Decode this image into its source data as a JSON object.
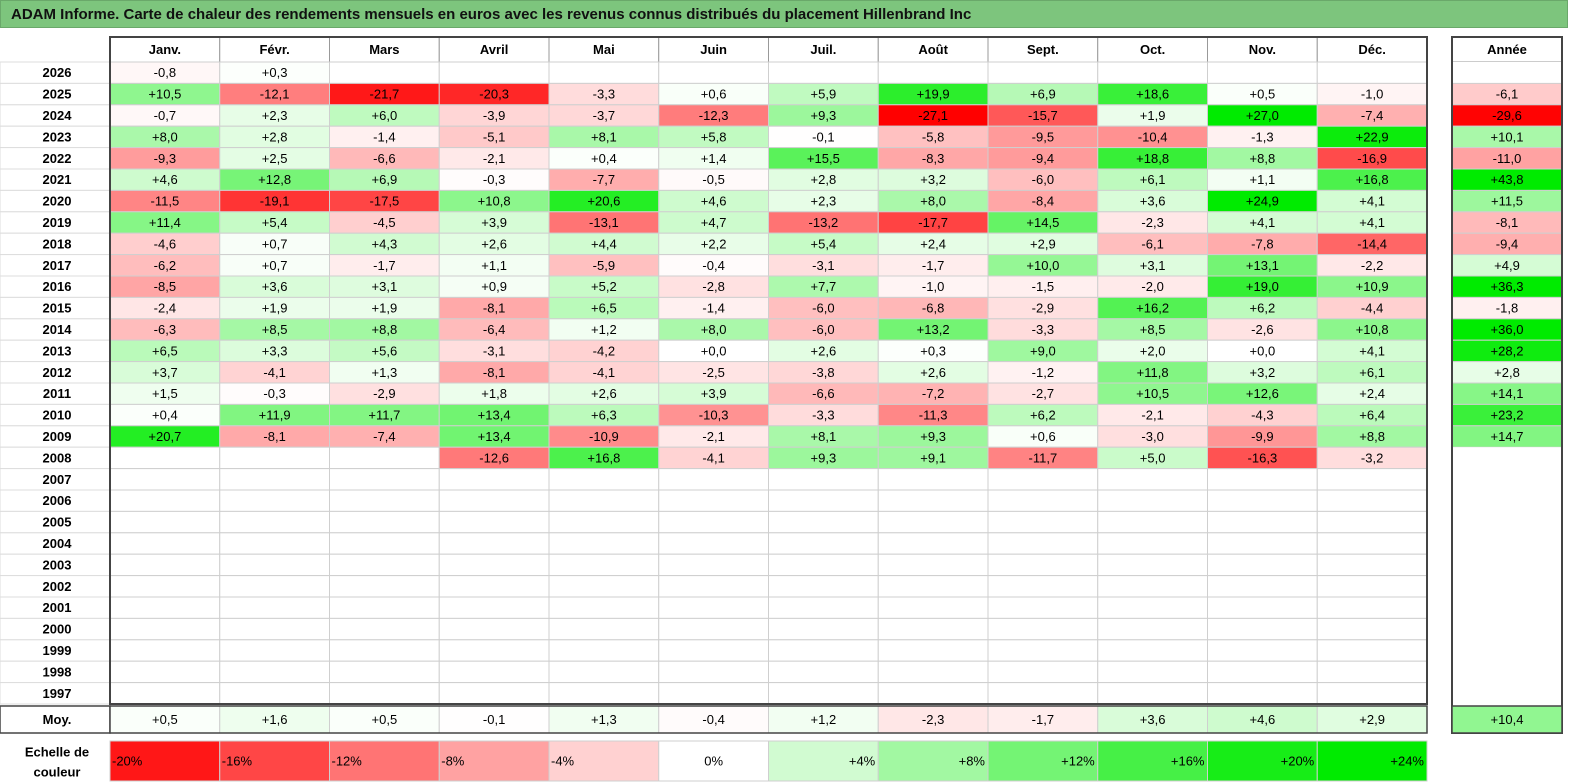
{
  "title": "ADAM Informe. Carte de chaleur des rendements mensuels en euros avec les revenus connus distribués du placement Hillenbrand Inc",
  "chart_data": {
    "type": "heatmap",
    "months": [
      "Janv.",
      "Févr.",
      "Mars",
      "Avril",
      "Mai",
      "Juin",
      "Juil.",
      "Août",
      "Sept.",
      "Oct.",
      "Nov.",
      "Déc."
    ],
    "year_header": "Année",
    "rows": [
      {
        "year": "2026",
        "values": [
          "-0,8",
          "+0,3",
          "",
          "",
          "",
          "",
          "",
          "",
          "",
          "",
          "",
          ""
        ],
        "annual": ""
      },
      {
        "year": "2025",
        "values": [
          "+10,5",
          "-12,1",
          "-21,7",
          "-20,3",
          "-3,3",
          "+0,6",
          "+5,9",
          "+19,9",
          "+6,9",
          "+18,6",
          "+0,5",
          "-1,0"
        ],
        "annual": "-6,1"
      },
      {
        "year": "2024",
        "values": [
          "-0,7",
          "+2,3",
          "+6,0",
          "-3,9",
          "-3,7",
          "-12,3",
          "+9,3",
          "-27,1",
          "-15,7",
          "+1,9",
          "+27,0",
          "-7,4"
        ],
        "annual": "-29,6"
      },
      {
        "year": "2023",
        "values": [
          "+8,0",
          "+2,8",
          "-1,4",
          "-5,1",
          "+8,1",
          "+5,8",
          "-0,1",
          "-5,8",
          "-9,5",
          "-10,4",
          "-1,3",
          "+22,9"
        ],
        "annual": "+10,1"
      },
      {
        "year": "2022",
        "values": [
          "-9,3",
          "+2,5",
          "-6,6",
          "-2,1",
          "+0,4",
          "+1,4",
          "+15,5",
          "-8,3",
          "-9,4",
          "+18,8",
          "+8,8",
          "-16,9"
        ],
        "annual": "-11,0"
      },
      {
        "year": "2021",
        "values": [
          "+4,6",
          "+12,8",
          "+6,9",
          "-0,3",
          "-7,7",
          "-0,5",
          "+2,8",
          "+3,2",
          "-6,0",
          "+6,1",
          "+1,1",
          "+16,8"
        ],
        "annual": "+43,8"
      },
      {
        "year": "2020",
        "values": [
          "-11,5",
          "-19,1",
          "-17,5",
          "+10,8",
          "+20,6",
          "+4,6",
          "+2,3",
          "+8,0",
          "-8,4",
          "+3,6",
          "+24,9",
          "+4,1"
        ],
        "annual": "+11,5"
      },
      {
        "year": "2019",
        "values": [
          "+11,4",
          "+5,4",
          "-4,5",
          "+3,9",
          "-13,1",
          "+4,7",
          "-13,2",
          "-17,7",
          "+14,5",
          "-2,3",
          "+4,1",
          "+4,1"
        ],
        "annual": "-8,1"
      },
      {
        "year": "2018",
        "values": [
          "-4,6",
          "+0,7",
          "+4,3",
          "+2,6",
          "+4,4",
          "+2,2",
          "+5,4",
          "+2,4",
          "+2,9",
          "-6,1",
          "-7,8",
          "-14,4"
        ],
        "annual": "-9,4"
      },
      {
        "year": "2017",
        "values": [
          "-6,2",
          "+0,7",
          "-1,7",
          "+1,1",
          "-5,9",
          "-0,4",
          "-3,1",
          "-1,7",
          "+10,0",
          "+3,1",
          "+13,1",
          "-2,2"
        ],
        "annual": "+4,9"
      },
      {
        "year": "2016",
        "values": [
          "-8,5",
          "+3,6",
          "+3,1",
          "+0,9",
          "+5,2",
          "-2,8",
          "+7,7",
          "-1,0",
          "-1,5",
          "-2,0",
          "+19,0",
          "+10,9"
        ],
        "annual": "+36,3"
      },
      {
        "year": "2015",
        "values": [
          "-2,4",
          "+1,9",
          "+1,9",
          "-8,1",
          "+6,5",
          "-1,4",
          "-6,0",
          "-6,8",
          "-2,9",
          "+16,2",
          "+6,2",
          "-4,4"
        ],
        "annual": "-1,8"
      },
      {
        "year": "2014",
        "values": [
          "-6,3",
          "+8,5",
          "+8,8",
          "-6,4",
          "+1,2",
          "+8,0",
          "-6,0",
          "+13,2",
          "-3,3",
          "+8,5",
          "-2,6",
          "+10,8"
        ],
        "annual": "+36,0"
      },
      {
        "year": "2013",
        "values": [
          "+6,5",
          "+3,3",
          "+5,6",
          "-3,1",
          "-4,2",
          "+0,0",
          "+2,6",
          "+0,3",
          "+9,0",
          "+2,0",
          "+0,0",
          "+4,1"
        ],
        "annual": "+28,2"
      },
      {
        "year": "2012",
        "values": [
          "+3,7",
          "-4,1",
          "+1,3",
          "-8,1",
          "-4,1",
          "-2,5",
          "-3,8",
          "+2,6",
          "-1,2",
          "+11,8",
          "+3,2",
          "+6,1"
        ],
        "annual": "+2,8"
      },
      {
        "year": "2011",
        "values": [
          "+1,5",
          "-0,3",
          "-2,9",
          "+1,8",
          "+2,6",
          "+3,9",
          "-6,6",
          "-7,2",
          "-2,7",
          "+10,5",
          "+12,6",
          "+2,4"
        ],
        "annual": "+14,1"
      },
      {
        "year": "2010",
        "values": [
          "+0,4",
          "+11,9",
          "+11,7",
          "+13,4",
          "+6,3",
          "-10,3",
          "-3,3",
          "-11,3",
          "+6,2",
          "-2,1",
          "-4,3",
          "+6,4"
        ],
        "annual": "+23,2"
      },
      {
        "year": "2009",
        "values": [
          "+20,7",
          "-8,1",
          "-7,4",
          "+13,4",
          "-10,9",
          "-2,1",
          "+8,1",
          "+9,3",
          "+0,6",
          "-3,0",
          "-9,9",
          "+8,8"
        ],
        "annual": "+14,7"
      },
      {
        "year": "2008",
        "values": [
          "",
          "",
          "",
          "-12,6",
          "+16,8",
          "-4,1",
          "+9,3",
          "+9,1",
          "-11,7",
          "+5,0",
          "-16,3",
          "-3,2"
        ],
        "annual": ""
      },
      {
        "year": "2007",
        "values": [
          "",
          "",
          "",
          "",
          "",
          "",
          "",
          "",
          "",
          "",
          "",
          ""
        ],
        "annual": ""
      },
      {
        "year": "2006",
        "values": [
          "",
          "",
          "",
          "",
          "",
          "",
          "",
          "",
          "",
          "",
          "",
          ""
        ],
        "annual": ""
      },
      {
        "year": "2005",
        "values": [
          "",
          "",
          "",
          "",
          "",
          "",
          "",
          "",
          "",
          "",
          "",
          ""
        ],
        "annual": ""
      },
      {
        "year": "2004",
        "values": [
          "",
          "",
          "",
          "",
          "",
          "",
          "",
          "",
          "",
          "",
          "",
          ""
        ],
        "annual": ""
      },
      {
        "year": "2003",
        "values": [
          "",
          "",
          "",
          "",
          "",
          "",
          "",
          "",
          "",
          "",
          "",
          ""
        ],
        "annual": ""
      },
      {
        "year": "2002",
        "values": [
          "",
          "",
          "",
          "",
          "",
          "",
          "",
          "",
          "",
          "",
          "",
          ""
        ],
        "annual": ""
      },
      {
        "year": "2001",
        "values": [
          "",
          "",
          "",
          "",
          "",
          "",
          "",
          "",
          "",
          "",
          "",
          ""
        ],
        "annual": ""
      },
      {
        "year": "2000",
        "values": [
          "",
          "",
          "",
          "",
          "",
          "",
          "",
          "",
          "",
          "",
          "",
          ""
        ],
        "annual": ""
      },
      {
        "year": "1999",
        "values": [
          "",
          "",
          "",
          "",
          "",
          "",
          "",
          "",
          "",
          "",
          "",
          ""
        ],
        "annual": ""
      },
      {
        "year": "1998",
        "values": [
          "",
          "",
          "",
          "",
          "",
          "",
          "",
          "",
          "",
          "",
          "",
          ""
        ],
        "annual": ""
      },
      {
        "year": "1997",
        "values": [
          "",
          "",
          "",
          "",
          "",
          "",
          "",
          "",
          "",
          "",
          "",
          ""
        ],
        "annual": ""
      }
    ],
    "average": {
      "label": "Moy.",
      "values": [
        "+0,5",
        "+1,6",
        "+0,5",
        "-0,1",
        "+1,3",
        "-0,4",
        "+1,2",
        "-2,3",
        "-1,7",
        "+3,6",
        "+4,6",
        "+2,9"
      ],
      "annual": "+10,4"
    },
    "scale": {
      "label_line1": "Echelle de",
      "label_line2": "couleur",
      "stops": [
        "-20%",
        "-16%",
        "-12%",
        "-8%",
        "-4%",
        "0%",
        "+4%",
        "+8%",
        "+12%",
        "+16%",
        "+20%",
        "+24%"
      ]
    },
    "colors": {
      "negative_max": "#ff0000",
      "positive_max": "#00ee00",
      "neutral": "#ffffff",
      "title_bg": "#7dc57d"
    }
  }
}
